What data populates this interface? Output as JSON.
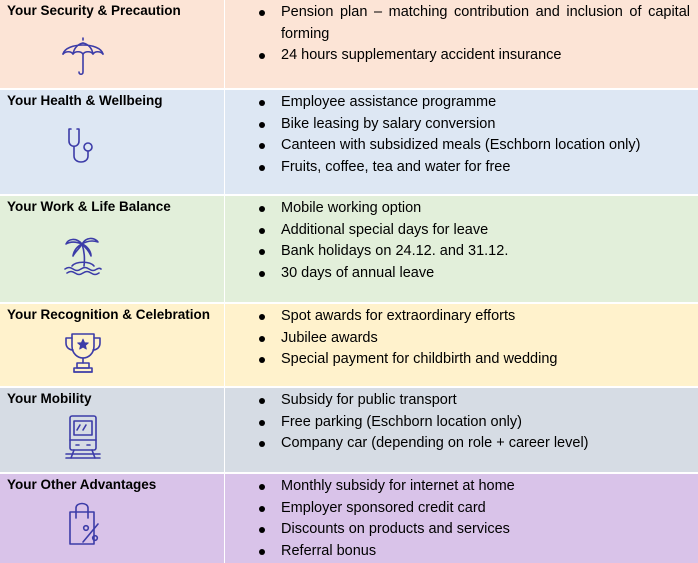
{
  "sections": [
    {
      "title": "Your Security & Precaution",
      "icon": "umbrella-icon",
      "bg": "#fce4d6",
      "items": [
        "Pension plan – matching contribution and inclusion of capital forming",
        "24 hours supplementary accident insurance"
      ]
    },
    {
      "title": "Your Health & Wellbeing",
      "icon": "stethoscope-icon",
      "bg": "#dde7f3",
      "items": [
        "Employee assistance programme",
        "Bike leasing by salary conversion",
        "Canteen with subsidized meals (Eschborn location only)",
        "Fruits, coffee, tea and water for free"
      ]
    },
    {
      "title": "Your Work & Life Balance",
      "icon": "palm-island-icon",
      "bg": "#e2efda",
      "items": [
        "Mobile working option",
        "Additional special days for leave",
        "Bank holidays on 24.12. and 31.12.",
        "30 days of annual leave"
      ]
    },
    {
      "title": "Your Recognition & Celebration",
      "icon": "trophy-icon",
      "bg": "#fff2cc",
      "items": [
        "Spot awards for extraordinary efforts",
        "Jubilee awards",
        "Special payment for childbirth and wedding"
      ]
    },
    {
      "title": "Your Mobility",
      "icon": "train-icon",
      "bg": "#d6dce4",
      "items": [
        "Subsidy for public transport",
        "Free parking (Eschborn location only)",
        "Company car (depending on role + career level)"
      ]
    },
    {
      "title": "Your Other Advantages",
      "icon": "shopping-bag-percent-icon",
      "bg": "#d9c3e9",
      "items": [
        "Monthly subsidy for internet at home",
        "Employer sponsored credit card",
        "Discounts on products and services",
        "Referral bonus"
      ]
    }
  ],
  "icon_color": "#3c3ca8"
}
